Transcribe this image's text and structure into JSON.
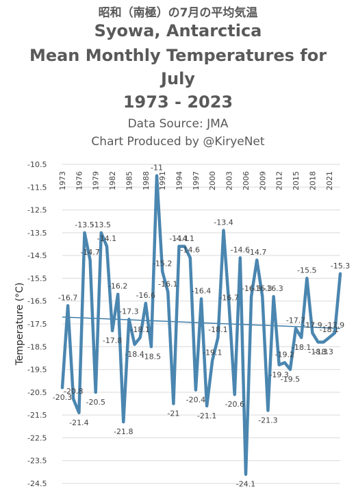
{
  "header": {
    "title_ja": "昭和（南極）の7月の平均気温",
    "title_l1": "Syowa, Antarctica",
    "title_l2": "Mean Monthly Temperatures for",
    "title_l3": "July",
    "title_l4": "1973 - 2023",
    "source": "Data Source: JMA",
    "credit": "Chart Produced by @KiryeNet"
  },
  "colors": {
    "series": "#4a86b0",
    "trend": "#3e7ca8",
    "grid": "#d9d9d9",
    "text": "#595959"
  },
  "chart_data": {
    "type": "line",
    "title": "Syowa, Antarctica Mean Monthly Temperatures for July 1973 - 2023",
    "xlabel": "",
    "ylabel": "Temperature (°C)",
    "ylim": [
      -24.5,
      -10.5
    ],
    "y_ticks": [
      -10.5,
      -11.5,
      -12.5,
      -13.5,
      -14.5,
      -15.5,
      -16.5,
      -17.5,
      -18.5,
      -19.5,
      -20.5,
      -21.5,
      -22.5,
      -23.5,
      -24.5
    ],
    "x_ticks": [
      1973,
      1976,
      1979,
      1982,
      1985,
      1988,
      1991,
      1994,
      1997,
      2000,
      2003,
      2006,
      2009,
      2012,
      2015,
      2018,
      2021
    ],
    "grid": true,
    "legend": "none",
    "x": [
      1973,
      1974,
      1975,
      1976,
      1977,
      1978,
      1979,
      1980,
      1981,
      1982,
      1983,
      1984,
      1985,
      1986,
      1987,
      1988,
      1989,
      1990,
      1991,
      1992,
      1993,
      1994,
      1995,
      1996,
      1997,
      1998,
      1999,
      2000,
      2001,
      2002,
      2003,
      2004,
      2005,
      2006,
      2007,
      2008,
      2009,
      2010,
      2011,
      2012,
      2013,
      2014,
      2015,
      2016,
      2017,
      2018,
      2019,
      2020,
      2021,
      2022,
      2023
    ],
    "values": [
      -20.3,
      -16.7,
      -20.8,
      -21.4,
      -13.5,
      -14.7,
      -20.5,
      -13.5,
      -14.1,
      -17.8,
      -16.2,
      -21.8,
      -17.3,
      -18.4,
      -18.1,
      -16.6,
      -18.5,
      -11,
      -15.2,
      -16.1,
      -21,
      -14.1,
      -14.1,
      -14.6,
      -20.4,
      -16.4,
      -21.1,
      -19.1,
      -18.1,
      -13.4,
      -16.7,
      -20.6,
      -14.6,
      -24.1,
      -16.3,
      -14.7,
      -16.3,
      -21.3,
      -16.3,
      -19.3,
      -19.2,
      -19.5,
      -17.7,
      -18.1,
      -15.5,
      -17.9,
      -18.3,
      -18.3,
      -18.1,
      -17.9,
      -15.3
    ],
    "trend": {
      "start": -17.2,
      "end": -17.7
    }
  }
}
